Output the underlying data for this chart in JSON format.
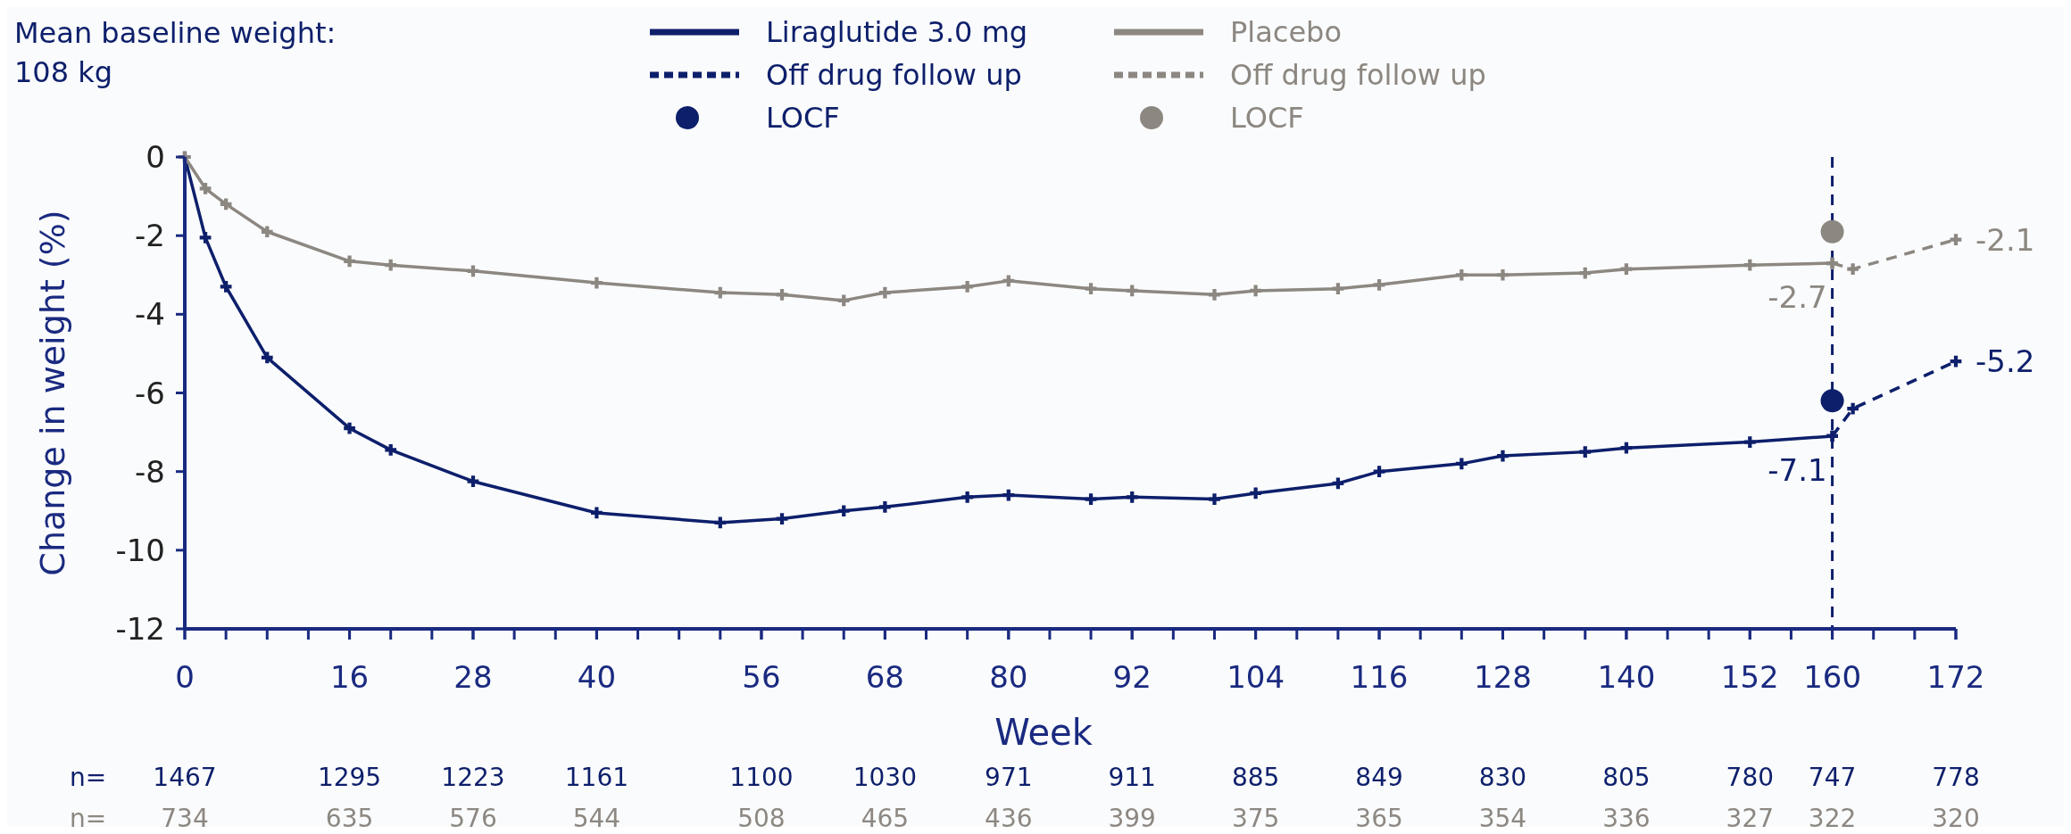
{
  "chart_data": {
    "type": "line",
    "xlabel": "Week",
    "ylabel": "Change in weight (%)",
    "xlim": [
      0,
      172
    ],
    "xticks": [
      0,
      16,
      28,
      40,
      56,
      68,
      80,
      92,
      104,
      116,
      128,
      140,
      152,
      160,
      172
    ],
    "ylim": [
      -12,
      0
    ],
    "yticks": [
      -12,
      -10,
      -8,
      -6,
      -4,
      -2,
      0
    ],
    "legend": "top",
    "marker": "cross",
    "series": [
      {
        "name": "Liraglutide 3.0 mg",
        "color": "#0d1f6b",
        "line_style": "solid",
        "x": [
          0,
          2,
          4,
          8,
          16,
          20,
          28,
          40,
          52,
          58,
          64,
          68,
          76,
          80,
          88,
          92,
          100,
          104,
          112,
          116,
          124,
          128,
          136,
          140,
          152,
          160
        ],
        "values": [
          0,
          -2.05,
          -3.3,
          -5.1,
          -6.9,
          -7.45,
          -8.25,
          -9.05,
          -9.3,
          -9.2,
          -9.0,
          -8.9,
          -8.65,
          -8.6,
          -8.7,
          -8.65,
          -8.7,
          -8.55,
          -8.3,
          -8.0,
          -7.8,
          -7.6,
          -7.5,
          -7.4,
          -7.25,
          -7.1
        ],
        "value_labels": [
          null,
          null,
          null,
          null,
          null,
          null,
          null,
          null,
          null,
          null,
          null,
          null,
          null,
          null,
          null,
          null,
          null,
          null,
          null,
          null,
          null,
          null,
          null,
          null,
          null,
          "-7.1"
        ]
      },
      {
        "name": "Off drug follow up",
        "color": "#0d1f6b",
        "line_style": "dashed",
        "x": [
          160,
          162,
          172
        ],
        "values": [
          -7.1,
          -6.4,
          -5.2
        ],
        "value_labels": [
          null,
          null,
          "-5.2"
        ]
      },
      {
        "name": "LOCF",
        "type": "scatter",
        "marker": "circle",
        "color": "#0d1f6b",
        "x": [
          160
        ],
        "values": [
          -6.2
        ]
      },
      {
        "name": "Placebo",
        "color": "#8c8781",
        "line_style": "solid",
        "x": [
          0,
          2,
          4,
          8,
          16,
          20,
          28,
          40,
          52,
          58,
          64,
          68,
          76,
          80,
          88,
          92,
          100,
          104,
          112,
          116,
          124,
          128,
          136,
          140,
          152,
          160
        ],
        "values": [
          0,
          -0.8,
          -1.2,
          -1.9,
          -2.65,
          -2.75,
          -2.9,
          -3.2,
          -3.45,
          -3.5,
          -3.65,
          -3.45,
          -3.3,
          -3.15,
          -3.35,
          -3.4,
          -3.5,
          -3.4,
          -3.35,
          -3.25,
          -3.0,
          -3.0,
          -2.95,
          -2.85,
          -2.75,
          -2.7
        ],
        "value_labels": [
          null,
          null,
          null,
          null,
          null,
          null,
          null,
          null,
          null,
          null,
          null,
          null,
          null,
          null,
          null,
          null,
          null,
          null,
          null,
          null,
          null,
          null,
          null,
          null,
          null,
          "-2.7"
        ]
      },
      {
        "name": "Off drug follow up",
        "color": "#8c8781",
        "line_style": "dashed",
        "x": [
          160,
          162,
          172
        ],
        "values": [
          -2.7,
          -2.85,
          -2.1
        ],
        "value_labels": [
          null,
          null,
          "-2.1"
        ]
      },
      {
        "name": "LOCF",
        "type": "scatter",
        "marker": "circle",
        "color": "#8c8781",
        "x": [
          160
        ],
        "values": [
          -1.9
        ]
      }
    ],
    "ref_lines": [
      {
        "axis": "x",
        "value": 160,
        "color": "#0d1f6b",
        "line_style": "dashed"
      }
    ],
    "annotations": [
      "Mean baseline weight:\n108 kg",
      "n=",
      "1467",
      "1295",
      "1223",
      "1161",
      "1100",
      "1030",
      "971",
      "911",
      "885",
      "849",
      "830",
      "805",
      "780",
      "747",
      "778",
      "n=",
      "734",
      "635",
      "576",
      "544",
      "508",
      "465",
      "436",
      "399",
      "375",
      "365",
      "354",
      "336",
      "327",
      "322",
      "320"
    ]
  }
}
